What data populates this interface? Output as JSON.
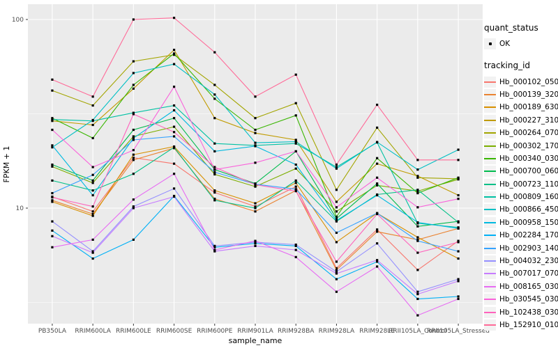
{
  "figure": {
    "background": "#FFFFFF",
    "panel_background": "#EBEBEB",
    "grid_color": "#FFFFFF",
    "axis_text_color": "#4D4D4D",
    "tick_color": "#333333",
    "point_color": "#000000"
  },
  "legend": {
    "quant_status": {
      "title": "quant_status",
      "items": [
        {
          "label": "OK",
          "marker": "point",
          "color": "#000000"
        }
      ]
    },
    "tracking_id": {
      "title": "tracking_id"
    }
  },
  "chart_data": {
    "type": "line",
    "title": "",
    "xlabel": "sample_name",
    "ylabel": "FPKM + 1",
    "y_scale": "log10",
    "ylim": [
      2.4,
      120
    ],
    "yticks": [
      {
        "value": 10,
        "label": "10"
      },
      {
        "value": 100,
        "label": "100"
      }
    ],
    "y_minor": [
      3.1623,
      31.623
    ],
    "grid": true,
    "legend_position": "right",
    "categories": [
      "PB350LA",
      "RRIM600LA",
      "RRIM600LE",
      "RRIM600SE",
      "RRIM600PE",
      "RRIM901LA",
      "RRIM928BA",
      "RRIM928LA",
      "RRIM928LE",
      "RRII105LA_Control",
      "RRII105LA_Stressed"
    ],
    "series": [
      {
        "name": "Hb_000102_050",
        "color": "#F8766D",
        "values": [
          11.5,
          9.6,
          18.5,
          17.2,
          12.1,
          10.2,
          13.0,
          4.8,
          7.7,
          4.7,
          6.7
        ]
      },
      {
        "name": "Hb_000139_320",
        "color": "#EA8331",
        "values": [
          11.0,
          9.3,
          18.0,
          20.8,
          11.2,
          9.6,
          12.4,
          4.7,
          7.5,
          6.8,
          7.8
        ]
      },
      {
        "name": "Hb_000189_630",
        "color": "#D89000",
        "values": [
          10.8,
          9.1,
          19.2,
          21.2,
          12.4,
          10.6,
          13.6,
          6.6,
          9.4,
          7.0,
          5.4
        ]
      },
      {
        "name": "Hb_000227_310",
        "color": "#C09B00",
        "values": [
          29.0,
          27.6,
          43.0,
          69.0,
          30.0,
          25.0,
          23.0,
          10.8,
          17.2,
          14.8,
          11.7
        ]
      },
      {
        "name": "Hb_000264_070",
        "color": "#A3A500",
        "values": [
          42.0,
          35.0,
          60.0,
          65.0,
          45.0,
          30.0,
          36.0,
          12.5,
          26.7,
          14.5,
          14.3
        ]
      },
      {
        "name": "Hb_000302_170",
        "color": "#7CAE00",
        "values": [
          16.6,
          13.6,
          24.0,
          27.0,
          15.1,
          13.0,
          16.2,
          9.6,
          13.2,
          12.3,
          14.2
        ]
      },
      {
        "name": "Hb_000340_030",
        "color": "#39B600",
        "values": [
          30.0,
          23.5,
          45.0,
          66.0,
          38.0,
          26.0,
          31.0,
          9.0,
          18.4,
          12.0,
          14.5
        ]
      },
      {
        "name": "Hb_000700_060",
        "color": "#00BB4E",
        "values": [
          17.0,
          14.0,
          26.0,
          30.0,
          16.0,
          13.5,
          20.0,
          8.8,
          13.5,
          8.0,
          8.5
        ]
      },
      {
        "name": "Hb_000723_110",
        "color": "#00C087",
        "values": [
          14.0,
          12.4,
          15.2,
          21.0,
          11.0,
          10.0,
          14.0,
          8.5,
          11.8,
          12.5,
          8.4
        ]
      },
      {
        "name": "Hb_000809_160",
        "color": "#00C1A3",
        "values": [
          29.5,
          29.0,
          32.0,
          35.0,
          22.0,
          21.5,
          22.0,
          16.5,
          22.3,
          8.3,
          7.9
        ]
      },
      {
        "name": "Hb_000866_450",
        "color": "#00BFC4",
        "values": [
          21.0,
          29.3,
          52.0,
          58.0,
          40.0,
          22.2,
          22.5,
          16.2,
          22.4,
          16.0,
          20.4
        ]
      },
      {
        "name": "Hb_000958_150",
        "color": "#00BAE0",
        "values": [
          21.5,
          11.7,
          23.5,
          33.0,
          20.0,
          21.3,
          17.0,
          8.6,
          11.7,
          8.4,
          7.8
        ]
      },
      {
        "name": "Hb_002284_170",
        "color": "#00B0F6",
        "values": [
          7.6,
          5.4,
          6.8,
          11.6,
          6.2,
          6.5,
          6.3,
          4.2,
          5.2,
          3.3,
          3.4
        ]
      },
      {
        "name": "Hb_002903_140",
        "color": "#35A2FF",
        "values": [
          12.0,
          15.0,
          23.0,
          24.0,
          15.5,
          13.4,
          12.6,
          7.4,
          9.4,
          6.7,
          5.9
        ]
      },
      {
        "name": "Hb_004032_230",
        "color": "#9590FF",
        "values": [
          8.5,
          5.9,
          10.2,
          12.7,
          6.3,
          6.6,
          6.4,
          4.6,
          6.5,
          3.6,
          4.2
        ]
      },
      {
        "name": "Hb_007017_070",
        "color": "#C77CFF",
        "values": [
          7.1,
          5.8,
          10.0,
          11.5,
          5.9,
          6.3,
          6.0,
          4.5,
          5.3,
          3.5,
          4.1
        ]
      },
      {
        "name": "Hb_008165_030",
        "color": "#E76BF3",
        "values": [
          6.2,
          6.8,
          11.1,
          15.2,
          6.0,
          6.7,
          5.5,
          3.6,
          4.9,
          2.7,
          3.3
        ]
      },
      {
        "name": "Hb_030545_030",
        "color": "#FA62DB",
        "values": [
          26.0,
          16.5,
          20.3,
          44.0,
          16.0,
          17.4,
          20.0,
          10.1,
          14.5,
          10.1,
          11.2
        ]
      },
      {
        "name": "Hb_102438_030",
        "color": "#FF62BC",
        "values": [
          11.4,
          10.2,
          31.5,
          25.3,
          16.5,
          13.3,
          12.3,
          5.2,
          9.3,
          5.8,
          6.6
        ]
      },
      {
        "name": "Hb_152910_010",
        "color": "#FF6A98",
        "values": [
          48.0,
          39.0,
          100.0,
          102.0,
          67.0,
          39.0,
          51.0,
          17.0,
          35.3,
          18.0,
          18.0
        ]
      }
    ]
  }
}
